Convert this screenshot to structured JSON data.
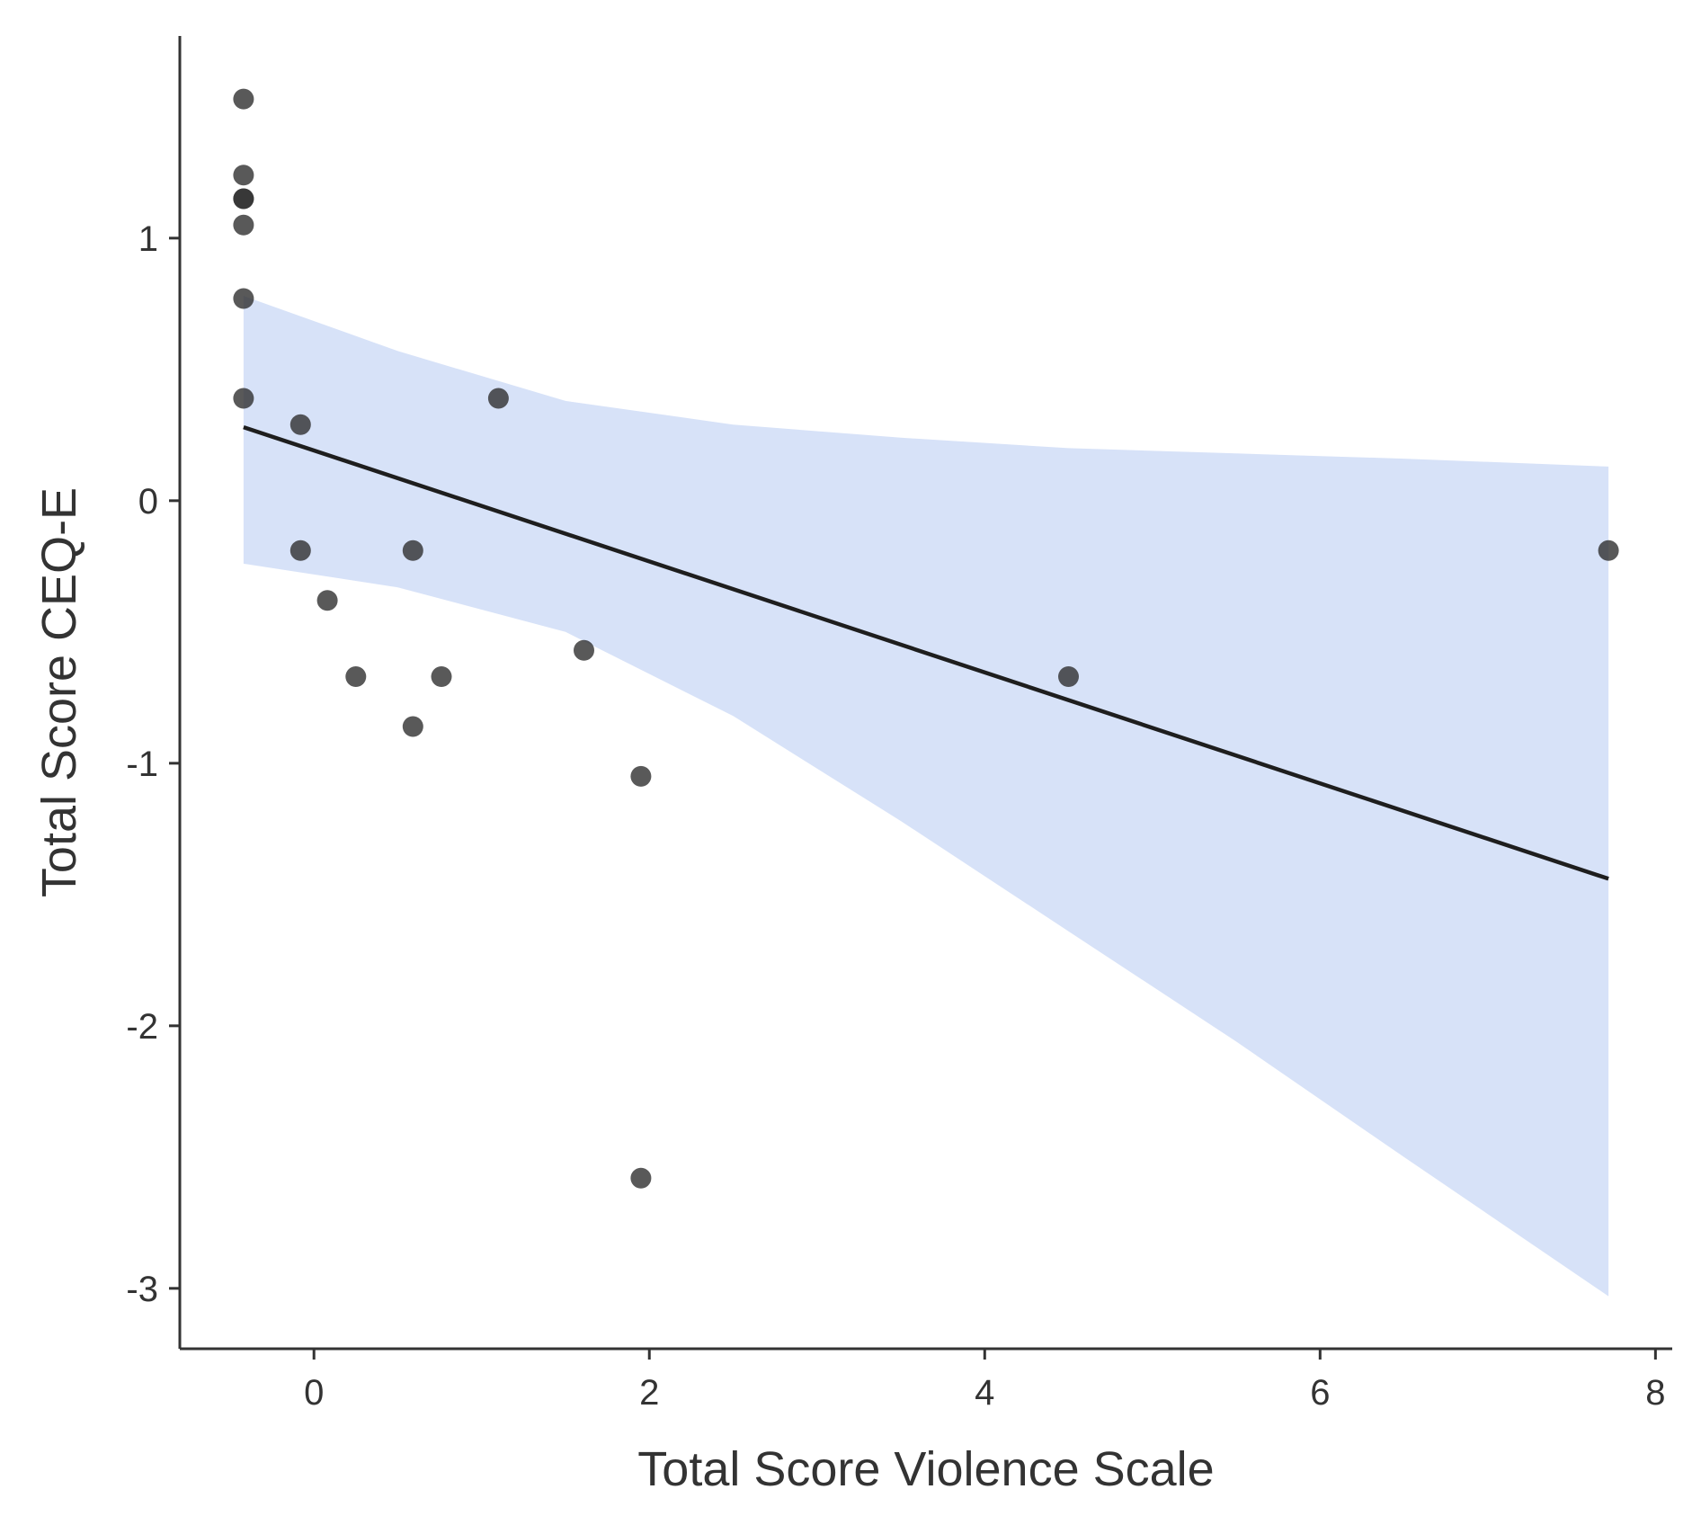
{
  "chart_data": {
    "type": "scatter",
    "title": "",
    "xlabel": "Total Score Violence Scale",
    "ylabel": "Total Score CEQ-E",
    "xlim": [
      -0.8,
      8.1
    ],
    "ylim": [
      -3.23,
      1.77
    ],
    "x_ticks": [
      0,
      2,
      4,
      6,
      8
    ],
    "y_ticks": [
      1,
      0,
      -1,
      -2,
      -3
    ],
    "x_tick_labels": [
      "0",
      "2",
      "4",
      "6",
      "8"
    ],
    "y_tick_labels": [
      "1",
      "0",
      "-1",
      "-2",
      "-3"
    ],
    "grid": false,
    "legend": "none",
    "colors": {
      "points": "#2f2f2f",
      "regression_line": "#1e1e1e",
      "confidence_band": "#c9d8f5",
      "axis": "#333333"
    },
    "points": [
      {
        "x": -0.42,
        "y": 1.53
      },
      {
        "x": -0.42,
        "y": 1.24
      },
      {
        "x": -0.42,
        "y": 1.15
      },
      {
        "x": -0.42,
        "y": 1.15
      },
      {
        "x": -0.42,
        "y": 1.05
      },
      {
        "x": -0.42,
        "y": 0.77
      },
      {
        "x": -0.42,
        "y": 0.39
      },
      {
        "x": -0.08,
        "y": 0.29
      },
      {
        "x": -0.08,
        "y": -0.19
      },
      {
        "x": 0.08,
        "y": -0.38
      },
      {
        "x": 0.25,
        "y": -0.67
      },
      {
        "x": 0.59,
        "y": -0.19
      },
      {
        "x": 0.59,
        "y": -0.86
      },
      {
        "x": 0.76,
        "y": -0.67
      },
      {
        "x": 1.1,
        "y": 0.39
      },
      {
        "x": 1.61,
        "y": -0.57
      },
      {
        "x": 1.95,
        "y": -1.05
      },
      {
        "x": 1.95,
        "y": -2.58
      },
      {
        "x": 4.5,
        "y": -0.67
      },
      {
        "x": 7.72,
        "y": -0.19
      }
    ],
    "regression_line": {
      "x": [
        -0.42,
        7.72
      ],
      "y": [
        0.28,
        -1.44
      ]
    },
    "confidence_band": {
      "x": [
        -0.42,
        0.5,
        1.5,
        2.5,
        3.5,
        4.5,
        5.5,
        6.5,
        7.72
      ],
      "upper": [
        0.78,
        0.57,
        0.38,
        0.29,
        0.24,
        0.2,
        0.18,
        0.16,
        0.13
      ],
      "lower": [
        -0.24,
        -0.33,
        -0.5,
        -0.82,
        -1.22,
        -1.64,
        -2.06,
        -2.5,
        -3.03
      ]
    }
  }
}
